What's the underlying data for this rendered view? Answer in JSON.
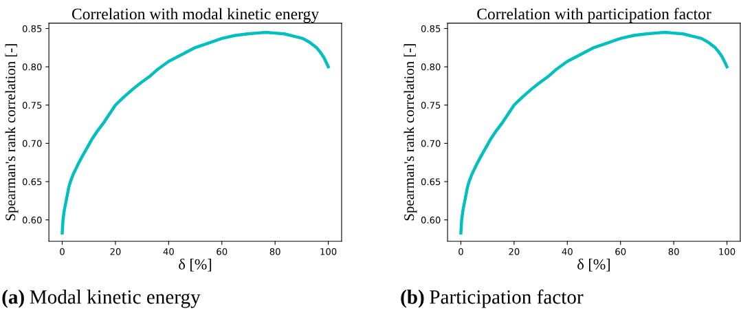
{
  "chart_data": [
    {
      "type": "line",
      "title": "Correlation with modal kinetic energy",
      "xlabel": "δ [%]",
      "ylabel": "Spearman's rank correlation [-]",
      "series": [
        {
          "color": "#00bfbf",
          "x": [
            0,
            0.3,
            0.8,
            1.6,
            2.5,
            3.2,
            4.2,
            6,
            7.7,
            9.5,
            11.1,
            13,
            15.4,
            17.5,
            20,
            23,
            26.6,
            29.5,
            32.7,
            36,
            40,
            45,
            49.9,
            55,
            60,
            65,
            69.7,
            73,
            76.6,
            80,
            83.5,
            87,
            90.4,
            93,
            95.6,
            97,
            98.2,
            99.2,
            100
          ],
          "values": [
            0.583,
            0.6,
            0.613,
            0.627,
            0.643,
            0.651,
            0.66,
            0.673,
            0.684,
            0.695,
            0.705,
            0.715,
            0.726,
            0.737,
            0.75,
            0.76,
            0.771,
            0.779,
            0.787,
            0.797,
            0.807,
            0.816,
            0.825,
            0.831,
            0.837,
            0.841,
            0.843,
            0.844,
            0.845,
            0.844,
            0.843,
            0.84,
            0.837,
            0.832,
            0.825,
            0.819,
            0.813,
            0.806,
            0.8
          ]
        }
      ],
      "xlim": [
        -5,
        105
      ],
      "xticks": [
        0,
        20,
        40,
        60,
        80,
        100
      ],
      "ylim": [
        0.572,
        0.857
      ],
      "yticks": [
        {
          "value": 0.6,
          "label": "0.60"
        },
        {
          "value": 0.65,
          "label": "0.65"
        },
        {
          "value": 0.7,
          "label": "0.70"
        },
        {
          "value": 0.75,
          "label": "0.75"
        },
        {
          "value": 0.8,
          "label": "0.80"
        },
        {
          "value": 0.85,
          "label": "0.85"
        }
      ],
      "grid": false,
      "legend": false,
      "marker": "none",
      "line_style": "solid",
      "annotations": [
        "(a) Modal kinetic energy"
      ]
    },
    {
      "type": "line",
      "title": "Correlation with participation factor",
      "xlabel": "δ [%]",
      "ylabel": "Spearman's rank correlation [-]",
      "series": [
        {
          "color": "#00bfbf",
          "x": [
            0,
            0.3,
            0.8,
            1.6,
            2.5,
            3.2,
            4.2,
            6,
            7.7,
            9.5,
            11.1,
            13,
            15.4,
            17.5,
            20,
            23,
            26.6,
            29.5,
            32.7,
            36,
            40,
            45,
            49.9,
            55,
            60,
            65,
            69.7,
            73,
            76.6,
            80,
            83.5,
            87,
            90.4,
            93,
            95.6,
            97,
            98.2,
            99.2,
            100
          ],
          "values": [
            0.583,
            0.6,
            0.613,
            0.627,
            0.643,
            0.651,
            0.66,
            0.673,
            0.684,
            0.695,
            0.705,
            0.715,
            0.726,
            0.737,
            0.75,
            0.76,
            0.771,
            0.779,
            0.787,
            0.797,
            0.807,
            0.816,
            0.825,
            0.831,
            0.837,
            0.841,
            0.843,
            0.844,
            0.845,
            0.844,
            0.843,
            0.84,
            0.837,
            0.832,
            0.825,
            0.819,
            0.813,
            0.806,
            0.8
          ]
        }
      ],
      "xlim": [
        -5,
        105
      ],
      "xticks": [
        0,
        20,
        40,
        60,
        80,
        100
      ],
      "ylim": [
        0.572,
        0.857
      ],
      "yticks": [
        {
          "value": 0.6,
          "label": "0.60"
        },
        {
          "value": 0.65,
          "label": "0.65"
        },
        {
          "value": 0.7,
          "label": "0.70"
        },
        {
          "value": 0.75,
          "label": "0.75"
        },
        {
          "value": 0.8,
          "label": "0.80"
        },
        {
          "value": 0.85,
          "label": "0.85"
        }
      ],
      "grid": false,
      "legend": false,
      "marker": "none",
      "line_style": "solid",
      "annotations": [
        "(b) Participation factor"
      ]
    }
  ]
}
